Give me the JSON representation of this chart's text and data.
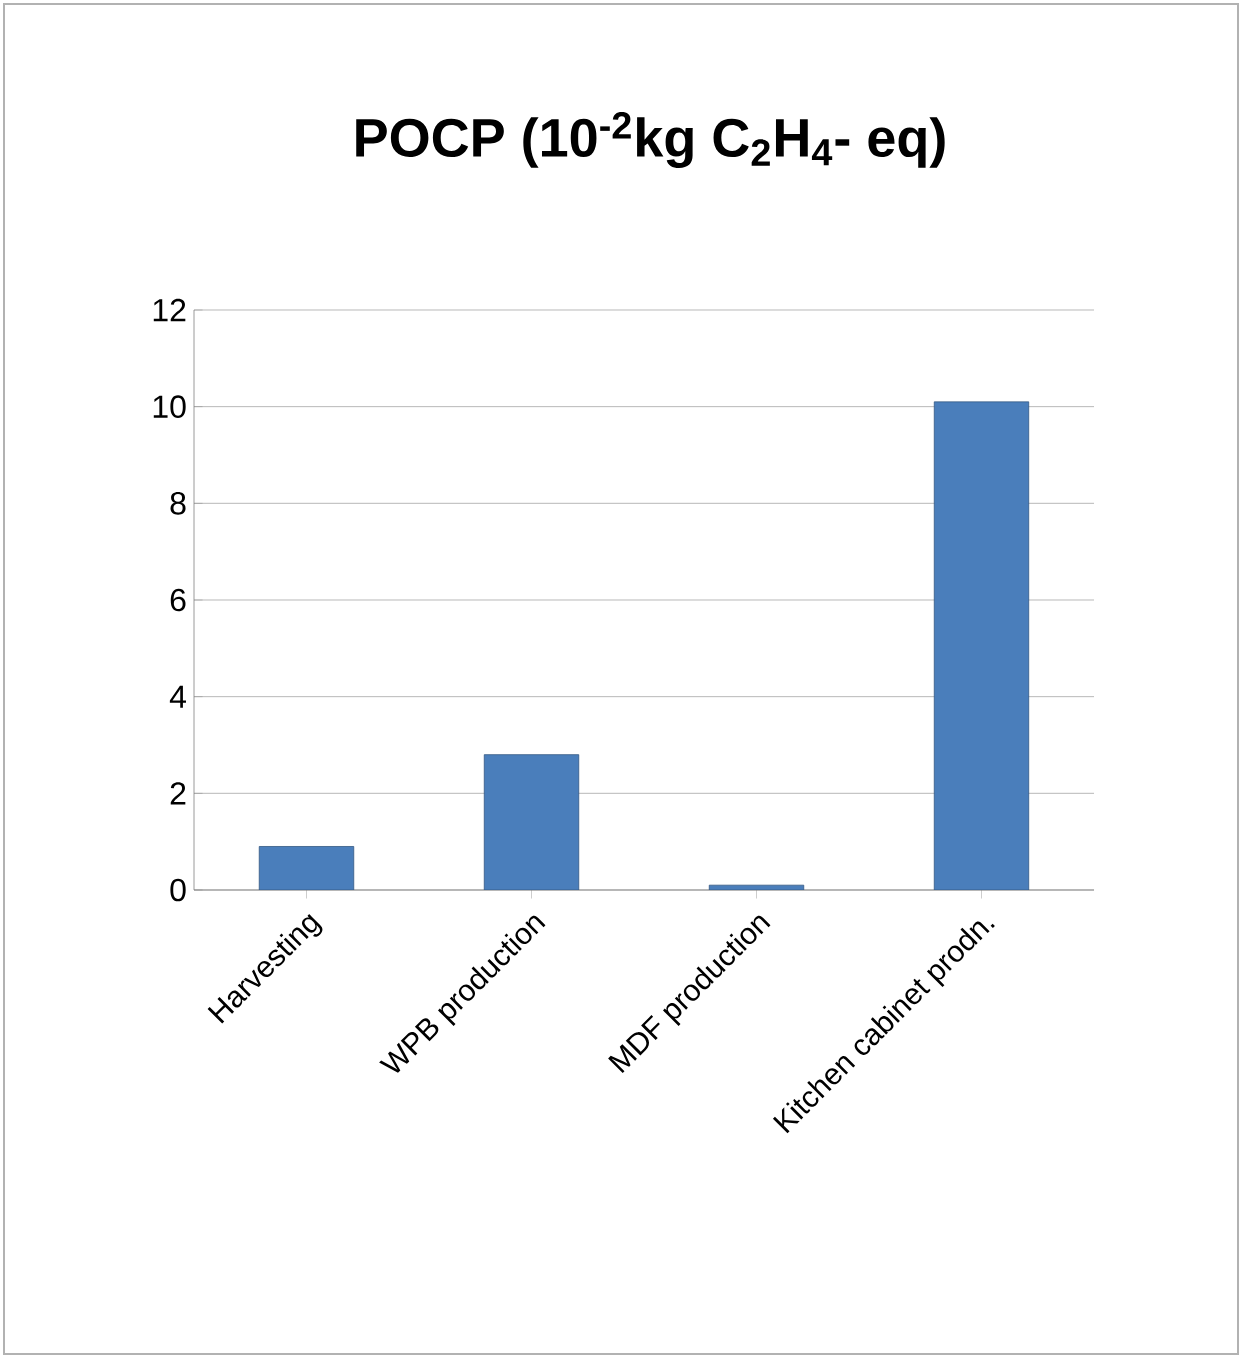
{
  "chart_data": {
    "type": "bar",
    "title": "POCP (10$^{-2}$kg C$_{2}$H$_{4}$- eq)",
    "categories": [
      "Harvesting",
      "WPB production",
      "MDF production",
      "Kitchen cabinet prodn."
    ],
    "values": [
      0.9,
      2.8,
      0.1,
      10.1
    ],
    "color": "#4a7ebb",
    "ylim": [
      0,
      12
    ],
    "yticks": [
      0,
      2,
      4,
      6,
      8,
      10,
      12
    ],
    "grid": "y"
  }
}
